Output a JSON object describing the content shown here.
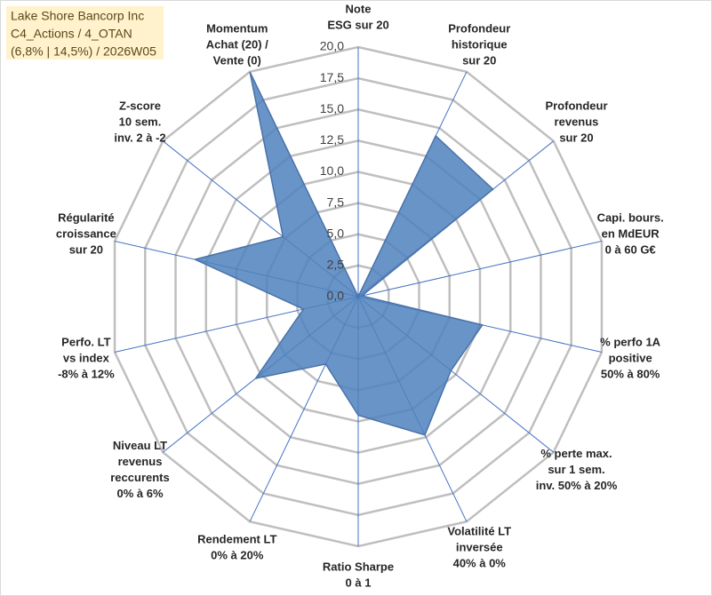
{
  "chart_data": {
    "type": "radar",
    "title": [
      "Lake Shore Bancorp Inc",
      "C4_Actions / 4_OTAN",
      "(6,8% | 14,5%) / 2026W05"
    ],
    "categories": [
      [
        "Note",
        "ESG sur 20"
      ],
      [
        "Profondeur",
        "historique",
        "sur 20"
      ],
      [
        "Profondeur",
        "revenus",
        "sur 20"
      ],
      [
        "Capi. bours.",
        "en MdEUR",
        "0 à 60 G€"
      ],
      [
        "% perfo 1A",
        "positive",
        "50% à 80%"
      ],
      [
        "% perte max.",
        "sur 1 sem.",
        "inv. 50% à 20%"
      ],
      [
        "Volatilité LT",
        "inversée",
        "40% à 0%"
      ],
      [
        "Ratio Sharpe",
        "0 à 1"
      ],
      [
        "Rendement LT",
        "0% à 20%"
      ],
      [
        "Niveau LT",
        "revenus",
        "reccurents",
        "0% à 6%"
      ],
      [
        "Perfo. LT",
        "vs index",
        "-8% à 12%"
      ],
      [
        "Régularité",
        "croissance",
        "sur 20"
      ],
      [
        "Z-score",
        "10 sem.",
        "inv. 2 à -2"
      ],
      [
        "Momentum",
        "Achat (20) /",
        "Vente (0)"
      ]
    ],
    "values": [
      0,
      14.3,
      13.8,
      0.3,
      10.2,
      9.5,
      12.3,
      9.5,
      6,
      10.5,
      4.5,
      13.4,
      7.7,
      20
    ],
    "color": "#4f81bd",
    "ylim": [
      0,
      20
    ],
    "yticks": [
      {
        "value": 0,
        "label": "0,0"
      },
      {
        "value": 2.5,
        "label": "2,5"
      },
      {
        "value": 5,
        "label": "5,0"
      },
      {
        "value": 7.5,
        "label": "7,5"
      },
      {
        "value": 10,
        "label": "10,0"
      },
      {
        "value": 12.5,
        "label": "12,5"
      },
      {
        "value": 15,
        "label": "15,0"
      },
      {
        "value": 17.5,
        "label": "17,5"
      },
      {
        "value": 20,
        "label": "20,0"
      }
    ],
    "grid": true
  }
}
